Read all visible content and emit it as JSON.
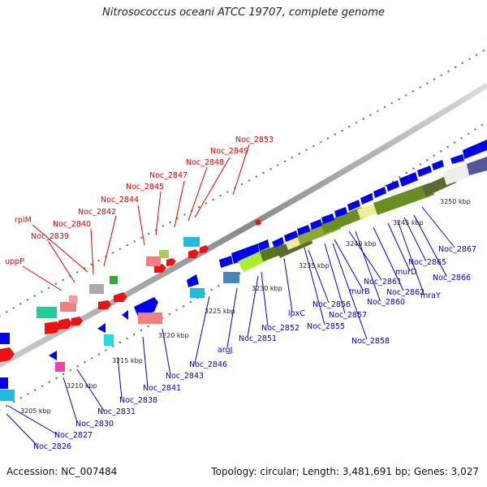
{
  "title": "Nitrosococcus oceani ATCC 19707, complete genome",
  "footer": {
    "accession": "Accession: NC_007484",
    "summary": "Topology: circular; Length: 3,481,691 bp; Genes: 3,027"
  },
  "ticks": [
    "3205 kbp",
    "3210 kbp",
    "3215 kbp",
    "3220 kbp",
    "3225 kbp",
    "3230 kbp",
    "3235 kbp",
    "3240 kbp",
    "3245 kbp",
    "3250 kbp"
  ],
  "labels_red": [
    "Noc_2853",
    "Noc_2849",
    "Noc_2848",
    "Noc_2847",
    "Noc_2845",
    "Noc_2844",
    "Noc_2842",
    "rplM",
    "Noc_2840",
    "Noc_2839",
    "uppP"
  ],
  "labels_blue": [
    "Noc_2867",
    "Noc_2865",
    "Noc_2866",
    "murD",
    "mraY",
    "Noc_2861",
    "Noc_2862",
    "murB",
    "Noc_2860",
    "Noc_2856",
    "Noc_2857",
    "lpxC",
    "Noc_2855",
    "Noc_2858",
    "Noc_2852",
    "Noc_2851",
    "argJ",
    "Noc_2846",
    "Noc_2843",
    "Noc_2841",
    "Noc_2838",
    "Noc_2831",
    "Noc_2830",
    "Noc_2827",
    "Noc_2826"
  ],
  "colors": {
    "forward": "#ff0000",
    "reverse": "#0000ee",
    "backbone": "#888888",
    "dots": "#228b22"
  }
}
